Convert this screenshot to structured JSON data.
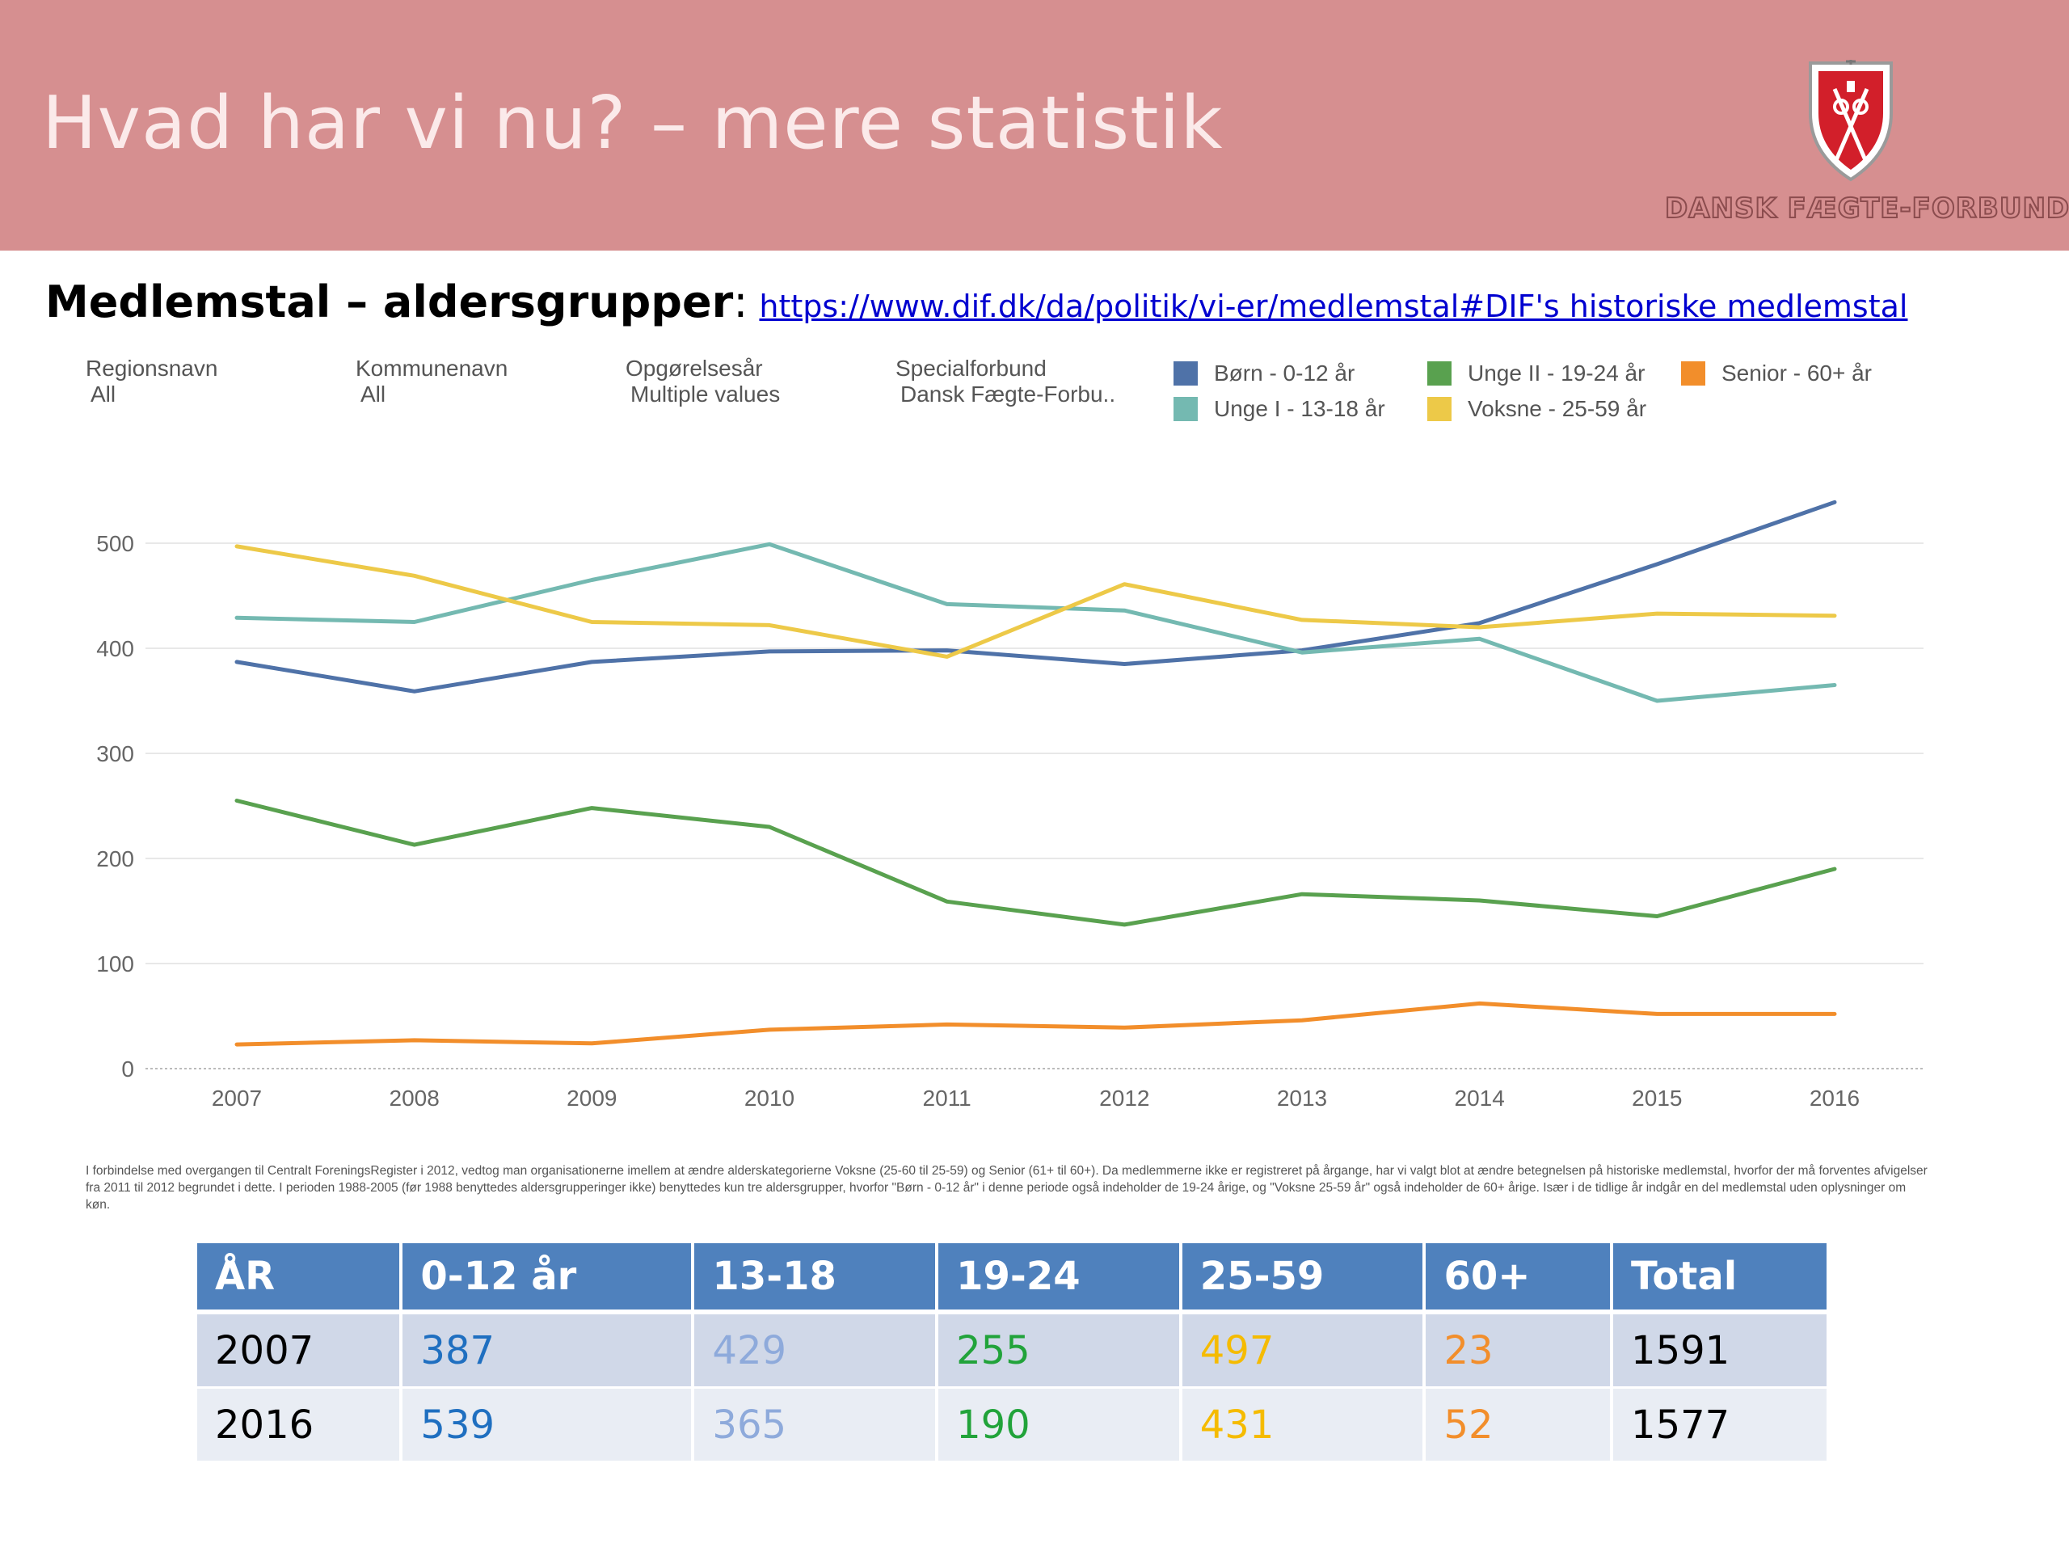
{
  "header": {
    "title": "Hvad har vi nu? – mere statistik",
    "logo_text": "DANSK FÆGTE-FORBUND"
  },
  "subheading": {
    "label": "Medlemstal – aldersgrupper",
    "colon": ":",
    "link_text": "https://www.dif.dk/da/politik/vi-er/medlemstal#DIF's historiske medlemstal"
  },
  "filters": [
    {
      "label": "Regionsnavn",
      "value": "All"
    },
    {
      "label": "Kommunenavn",
      "value": "All"
    },
    {
      "label": "Opgørelsesår",
      "value": "Multiple values"
    },
    {
      "label": "Specialforbund",
      "value": "Dansk Fægte-Forbu.."
    }
  ],
  "colors": {
    "born": "#4f72a8",
    "unge_i": "#74b9b1",
    "unge_ii": "#59a14f",
    "voksne": "#edc948",
    "senior": "#f28e2b"
  },
  "chart_data": {
    "type": "line",
    "x": [
      2007,
      2008,
      2009,
      2010,
      2011,
      2012,
      2013,
      2014,
      2015,
      2016
    ],
    "ylim": [
      0,
      540
    ],
    "yticks": [
      0,
      100,
      200,
      300,
      400,
      500
    ],
    "grid": true,
    "legend_position": "top-right",
    "series": [
      {
        "name": "Børn - 0-12 år",
        "color_key": "born",
        "values": [
          387,
          359,
          387,
          397,
          398,
          385,
          398,
          424,
          480,
          539
        ]
      },
      {
        "name": "Unge I - 13-18 år",
        "color_key": "unge_i",
        "values": [
          429,
          425,
          465,
          499,
          442,
          436,
          396,
          409,
          350,
          365
        ]
      },
      {
        "name": "Unge II - 19-24 år",
        "color_key": "unge_ii",
        "values": [
          255,
          213,
          248,
          230,
          159,
          137,
          166,
          160,
          145,
          190
        ]
      },
      {
        "name": "Voksne - 25-59 år",
        "color_key": "voksne",
        "values": [
          497,
          469,
          425,
          422,
          392,
          461,
          427,
          420,
          433,
          431
        ]
      },
      {
        "name": "Senior - 60+ år",
        "color_key": "senior",
        "values": [
          23,
          27,
          24,
          37,
          42,
          39,
          46,
          62,
          52,
          52
        ]
      }
    ]
  },
  "footnote": "I forbindelse med overgangen til Centralt ForeningsRegister i 2012, vedtog man organisationerne imellem at ændre alderskategorierne Voksne (25-60 til 25-59) og Senior (61+ til 60+). Da medlemmerne ikke er registreret på årgange, har vi valgt blot at ændre betegnelsen på historiske medlemstal, hvorfor der må forventes afvigelser fra 2011 til 2012 begrundet i dette. I perioden 1988-2005 (før 1988 benyttedes aldersgrupperinger ikke) benyttedes kun tre aldersgrupper, hvorfor \"Børn - 0-12 år\" i denne periode også indeholder de 19-24 årige, og \"Voksne 25-59 år\" også indeholder de 60+ årige. Især i de tidlige år indgår en del medlemstal uden oplysninger om køn.",
  "table": {
    "headers": [
      "ÅR",
      "0-12 år",
      "13-18",
      "19-24",
      "25-59",
      "60+",
      "Total"
    ],
    "rows": [
      [
        "2007",
        "387",
        "429",
        "255",
        "497",
        "23",
        "1591"
      ],
      [
        "2016",
        "539",
        "365",
        "190",
        "431",
        "52",
        "1577"
      ]
    ],
    "column_colors": [
      "#000000",
      "#1f6fc0",
      "#8eaadb",
      "#21a33a",
      "#f5bb00",
      "#f28e2b",
      "#000000"
    ]
  }
}
